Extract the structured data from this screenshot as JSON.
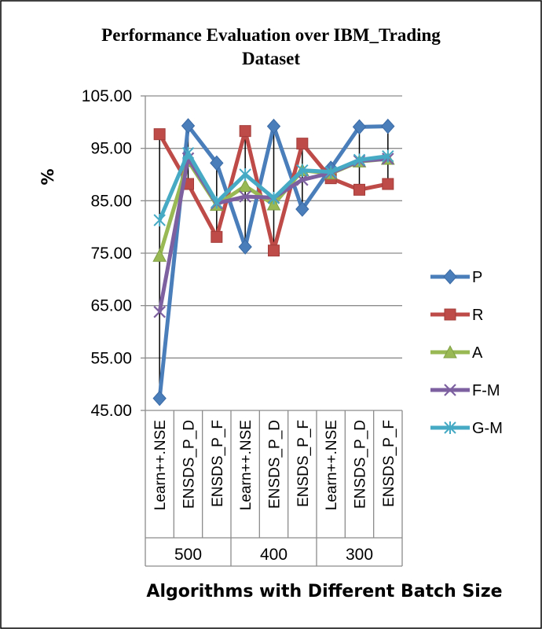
{
  "chart_data": {
    "type": "line",
    "title_line1": "Performance Evaluation over IBM_Trading",
    "title_line2": "Dataset",
    "xlabel": "Algorithms with Different Batch Size",
    "ylabel": "%",
    "ylim": [
      45,
      105
    ],
    "yticks": [
      "105.00",
      "95.00",
      "85.00",
      "75.00",
      "65.00",
      "55.00",
      "45.00"
    ],
    "ytick_values": [
      105,
      95,
      85,
      75,
      65,
      55,
      45
    ],
    "categories": [
      "Learn++.NSE",
      "ENSDS_P_D",
      "ENSDS_P_F",
      "Learn++.NSE",
      "ENSDS_P_D",
      "ENSDS_P_F",
      "Learn++.NSE",
      "ENSDS_P_D",
      "ENSDS_P_F"
    ],
    "groups": [
      "500",
      "400",
      "300"
    ],
    "grid": true,
    "legend_position": "right",
    "high_low_lines": true,
    "series": [
      {
        "name": "P",
        "color": "#4a7ebb",
        "marker": "diamond",
        "values": [
          47.3,
          99.3,
          92.2,
          76.2,
          99.2,
          83.4,
          91.2,
          99.1,
          99.2
        ]
      },
      {
        "name": "R",
        "color": "#be4b48",
        "marker": "square",
        "values": [
          97.7,
          88.2,
          78.1,
          98.3,
          75.5,
          95.9,
          89.3,
          87.1,
          88.2
        ]
      },
      {
        "name": "A",
        "color": "#98b954",
        "marker": "triangle",
        "values": [
          74.5,
          92.6,
          84.2,
          87.8,
          84.3,
          90.8,
          90.2,
          92.5,
          93.0
        ]
      },
      {
        "name": "F-M",
        "color": "#7d60a0",
        "marker": "x",
        "values": [
          63.8,
          93.1,
          84.5,
          85.8,
          85.6,
          89.0,
          90.3,
          92.6,
          93.0
        ]
      },
      {
        "name": "G-M",
        "color": "#46aac5",
        "marker": "star",
        "values": [
          81.3,
          94.1,
          84.7,
          90.0,
          85.5,
          90.8,
          90.5,
          92.8,
          93.5
        ]
      }
    ]
  }
}
